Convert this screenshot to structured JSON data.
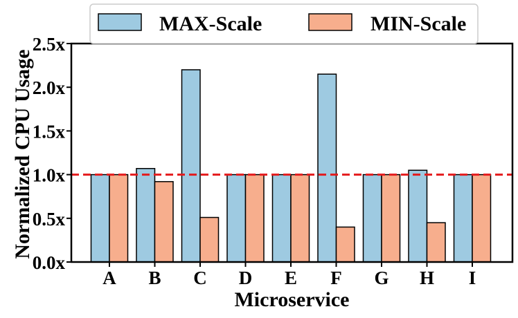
{
  "chart_data": {
    "type": "bar",
    "title": "",
    "xlabel": "Microservice",
    "ylabel": "Normalized CPU Usage",
    "categories": [
      "A",
      "B",
      "C",
      "D",
      "E",
      "F",
      "G",
      "H",
      "I"
    ],
    "series": [
      {
        "name": "MAX-Scale",
        "color": "#9ecae1",
        "values": [
          1.0,
          1.07,
          2.2,
          1.0,
          1.0,
          2.15,
          1.0,
          1.05,
          1.0
        ]
      },
      {
        "name": "MIN-Scale",
        "color": "#f7ae8d",
        "values": [
          1.0,
          0.92,
          0.51,
          1.0,
          1.0,
          0.4,
          1.0,
          0.45,
          1.0
        ]
      }
    ],
    "ylim": [
      0,
      2.5
    ],
    "yticks": [
      0.0,
      0.5,
      1.0,
      1.5,
      2.0,
      2.5
    ],
    "ytick_labels": [
      "0.0x",
      "0.5x",
      "1.0x",
      "1.5x",
      "2.0x",
      "2.5x"
    ],
    "reference_line": {
      "value": 1.0,
      "color": "#e41a1c",
      "style": "dashed"
    },
    "legend": {
      "position": "top-center",
      "columns": 2
    },
    "grid": false
  }
}
